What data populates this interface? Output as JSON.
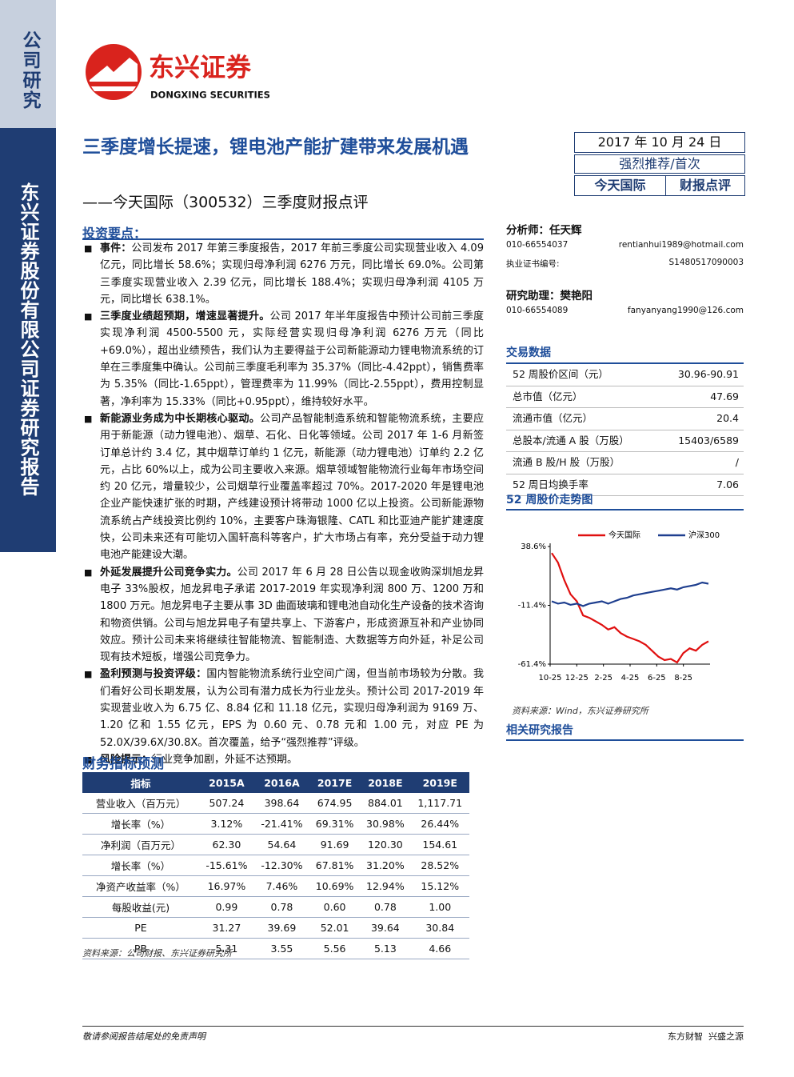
{
  "sidebar": {
    "category": "公司研究",
    "company": "东兴证券股份有限公司证券研究报告"
  },
  "logo": {
    "name_cn": "东兴证券",
    "name_en": "DONGXING SECURITIES"
  },
  "header": {
    "title": "三季度增长提速，锂电池产能扩建带来发展机遇",
    "subtitle": "——今天国际（300532）三季度财报点评",
    "date": "2017 年 10 月 24 日",
    "rating": "强烈推荐/首次",
    "company": "今天国际",
    "report_type": "财报点评"
  },
  "summary": {
    "heading": "投资要点：",
    "points": [
      {
        "lead": "事件：",
        "text": "公司发布 2017 年第三季度报告，2017 年前三季度公司实现营业收入 4.09 亿元，同比增长 58.6%；实现归母净利润 6276 万元，同比增长 69.0%。公司第三季度实现营业收入 2.39 亿元，同比增长 188.4%；实现归母净利润 4105 万元，同比增长 638.1%。"
      },
      {
        "lead": "三季度业绩超预期，增速显著提升。",
        "text": "公司 2017 年半年度报告中预计公司前三季度实现净利润 4500-5500 元，实际经营实现归母净利润 6276 万元（同比+69.0%），超出业绩预告，我们认为主要得益于公司新能源动力锂电物流系统的订单在三季度集中确认。公司前三季度毛利率为 35.37%（同比-4.42ppt），销售费率为 5.35%（同比-1.65ppt），管理费率为 11.99%（同比-2.55ppt），费用控制显著，净利率为 15.33%（同比+0.95ppt），维持较好水平。"
      },
      {
        "lead": "新能源业务成为中长期核心驱动。",
        "text": "公司产品智能制造系统和智能物流系统，主要应用于新能源（动力锂电池）、烟草、石化、日化等领域。公司 2017 年 1-6 月新签订单总计约 3.4 亿，其中烟草订单约 1 亿元，新能源（动力锂电池）订单约 2.2 亿元，占比 60%以上，成为公司主要收入来源。烟草领域智能物流行业每年市场空间约 20 亿元，增量较少，公司烟草行业覆盖率超过 70%。2017-2020 年是锂电池企业产能快速扩张的时期，产线建设预计将带动 1000 亿以上投资。公司新能源物流系统占产线投资比例约 10%，主要客户珠海银隆、CATL 和比亚迪产能扩建速度快，公司未来还有可能切入国轩高科等客户，扩大市场占有率，充分受益于动力锂电池产能建设大潮。"
      },
      {
        "lead": "外延发展提升公司竞争实力。",
        "text": "公司 2017 年 6 月 28 日公告以现金收购深圳旭龙昇电子 33%股权，旭龙昇电子承诺 2017-2019 年实现净利润 800 万、1200 万和 1800 万元。旭龙昇电子主要从事 3D 曲面玻璃和锂电池自动化生产设备的技术咨询和物资供销。公司与旭龙昇电子有望共享上、下游客户，形成资源互补和产业协同效应。预计公司未来将继续往智能物流、智能制造、大数据等方向外延，补足公司现有技术短板，增强公司竞争力。"
      },
      {
        "lead": "盈利预测与投资评级：",
        "text": "国内智能物流系统行业空间广阔，但当前市场较为分散。我们看好公司长期发展，认为公司有潜力成长为行业龙头。预计公司 2017-2019 年实现营业收入为 6.75 亿、8.84 亿和 11.18 亿元，实现归母净利润为 9169 万、1.20 亿和 1.55 亿元，EPS 为 0.60 元、0.78 元和 1.00 元，对应 PE 为 52.0X/39.6X/30.8X。首次覆盖，给予“强烈推荐”评级。"
      },
      {
        "lead": "风险提示：",
        "text": "行业竞争加剧，外延不达预期。"
      }
    ]
  },
  "forecast": {
    "heading": "财务指标预测",
    "table": {
      "header": [
        "指标",
        "2015A",
        "2016A",
        "2017E",
        "2018E",
        "2019E"
      ],
      "rows": [
        [
          "营业收入（百万元）",
          "507.24",
          "398.64",
          "674.95",
          "884.01",
          "1,117.71"
        ],
        [
          "增长率（%）",
          "3.12%",
          "-21.41%",
          "69.31%",
          "30.98%",
          "26.44%"
        ],
        [
          "净利润（百万元）",
          "62.30",
          "54.64",
          "91.69",
          "120.30",
          "154.61"
        ],
        [
          "增长率（%）",
          "-15.61%",
          "-12.30%",
          "67.81%",
          "31.20%",
          "28.52%"
        ],
        [
          "净资产收益率（%）",
          "16.97%",
          "7.46%",
          "10.69%",
          "12.94%",
          "15.12%"
        ],
        [
          "每股收益(元)",
          "0.99",
          "0.78",
          "0.60",
          "0.78",
          "1.00"
        ],
        [
          "PE",
          "31.27",
          "39.69",
          "52.01",
          "39.64",
          "30.84"
        ],
        [
          "PB",
          "5.31",
          "3.55",
          "5.56",
          "5.13",
          "4.66"
        ]
      ]
    },
    "source": "资料来源：公司财报、东兴证券研究所"
  },
  "analysts": {
    "analyst": {
      "label": "分析师：任天辉",
      "phone": "010-66554037",
      "email": "rentianhui1989@hotmail.com",
      "cert_label": "执业证书编号:",
      "cert": "S1480517090003"
    },
    "assistant": {
      "label": "研究助理：樊艳阳",
      "phone": "010-66554089",
      "email": "fanyanyang1990@126.com"
    }
  },
  "trading": {
    "heading": "交易数据",
    "rows": [
      [
        "52 周股价区间（元）",
        "30.96-90.91"
      ],
      [
        "总市值（亿元）",
        "47.69"
      ],
      [
        "流通市值（亿元）",
        "20.4"
      ],
      [
        "总股本/流通 A 股（万股）",
        "15403/6589"
      ],
      [
        "流通 B 股/H 股（万股）",
        "/"
      ],
      [
        "52 周日均换手率",
        "7.06"
      ]
    ]
  },
  "chart_data": {
    "type": "line",
    "title": "52 周股价走势图",
    "xticks": [
      "10-25",
      "12-25",
      "2-25",
      "4-25",
      "6-25",
      "8-25"
    ],
    "ylim": [
      -61.4,
      38.6
    ],
    "yticks": [
      {
        "value": 38.6,
        "label": "38.6%"
      },
      {
        "value": -11.4,
        "label": "-11.4%"
      },
      {
        "value": -61.4,
        "label": "-61.4%"
      }
    ],
    "series": [
      {
        "name": "今天国际",
        "color": "#e01010",
        "values": [
          33,
          25,
          10,
          -2,
          -8,
          -20,
          -22,
          -25,
          -28,
          -32,
          -30,
          -35,
          -38,
          -40,
          -42,
          -45,
          -50,
          -55,
          -58,
          -57,
          -60,
          -52,
          -48,
          -50,
          -45,
          -42
        ]
      },
      {
        "name": "沪深300",
        "color": "#1f3f8f",
        "values": [
          -8,
          -10,
          -9,
          -11,
          -10,
          -12,
          -10,
          -9,
          -8,
          -10,
          -8,
          -6,
          -5,
          -3,
          -2,
          -1,
          0,
          1,
          2,
          3,
          2,
          4,
          5,
          6,
          8,
          7
        ]
      }
    ],
    "source": "资料来源：Wind，东兴证券研究所"
  },
  "related": {
    "heading": "相关研究报告"
  },
  "footer": {
    "disclaimer": "敬请参阅报告结尾处的免责声明",
    "motto": "东方财智  兴盛之源"
  }
}
